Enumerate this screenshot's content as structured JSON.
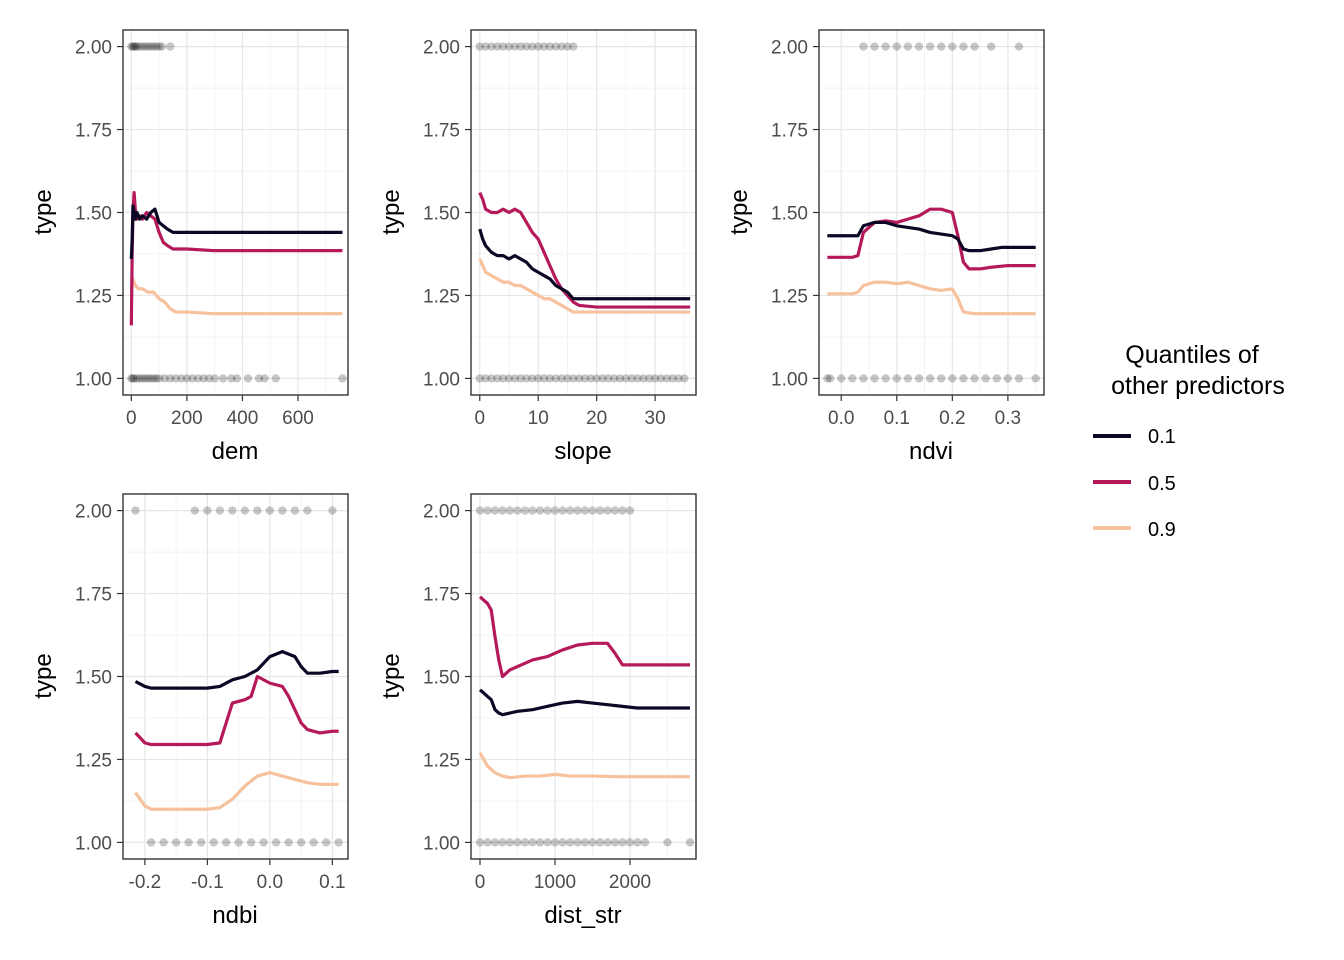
{
  "legend": {
    "title_line1": "Quantiles of",
    "title_line2": "other predictors",
    "items": [
      {
        "label": "0.1",
        "color": "#0b0724"
      },
      {
        "label": "0.5",
        "color": "#b5195a"
      },
      {
        "label": "0.9",
        "color": "#f6c19c"
      }
    ]
  },
  "chart_data": [
    {
      "type": "line",
      "xlabel": "dem",
      "ylabel": "type",
      "xlim": [
        -30,
        780
      ],
      "ylim": [
        0.95,
        2.05
      ],
      "xticks": [
        0,
        200,
        400,
        600
      ],
      "xtick_labels": [
        "0",
        "200",
        "400",
        "600"
      ],
      "yticks": [
        1.0,
        1.25,
        1.5,
        1.75,
        2.0
      ],
      "ytick_labels": [
        "1.00",
        "1.25",
        "1.50",
        "1.75",
        "2.00"
      ],
      "grid": true,
      "series": [
        {
          "name": "0.1",
          "x": [
            0,
            3,
            6,
            10,
            15,
            20,
            30,
            40,
            55,
            70,
            85,
            100,
            115,
            130,
            150,
            170,
            200,
            300,
            500,
            760
          ],
          "y": [
            1.36,
            1.42,
            1.52,
            1.5,
            1.48,
            1.5,
            1.48,
            1.49,
            1.48,
            1.5,
            1.51,
            1.47,
            1.46,
            1.45,
            1.44,
            1.44,
            1.44,
            1.44,
            1.44,
            1.44
          ]
        },
        {
          "name": "0.5",
          "x": [
            0,
            3,
            6,
            10,
            15,
            20,
            30,
            40,
            55,
            70,
            85,
            100,
            115,
            130,
            150,
            170,
            200,
            300,
            500,
            760
          ],
          "y": [
            1.16,
            1.38,
            1.5,
            1.56,
            1.5,
            1.48,
            1.49,
            1.48,
            1.5,
            1.49,
            1.48,
            1.44,
            1.41,
            1.4,
            1.39,
            1.39,
            1.39,
            1.385,
            1.385,
            1.385
          ]
        },
        {
          "name": "0.9",
          "x": [
            0,
            5,
            10,
            15,
            25,
            40,
            60,
            80,
            100,
            120,
            140,
            160,
            200,
            300,
            500,
            760
          ],
          "y": [
            1.27,
            1.3,
            1.29,
            1.28,
            1.27,
            1.27,
            1.26,
            1.26,
            1.24,
            1.23,
            1.21,
            1.2,
            1.2,
            1.195,
            1.195,
            1.195
          ]
        }
      ],
      "rug": {
        "y2": [
          0,
          5,
          10,
          15,
          20,
          30,
          40,
          50,
          60,
          70,
          80,
          90,
          100,
          110,
          140
        ],
        "y1": [
          0,
          5,
          10,
          20,
          30,
          40,
          50,
          60,
          70,
          80,
          90,
          100,
          120,
          140,
          160,
          180,
          200,
          220,
          240,
          260,
          280,
          300,
          330,
          360,
          380,
          420,
          460,
          480,
          520,
          760
        ]
      }
    },
    {
      "type": "line",
      "xlabel": "slope",
      "ylabel": "type",
      "xlim": [
        -1.5,
        37
      ],
      "ylim": [
        0.95,
        2.05
      ],
      "xticks": [
        0,
        10,
        20,
        30
      ],
      "xtick_labels": [
        "0",
        "10",
        "20",
        "30"
      ],
      "yticks": [
        1.0,
        1.25,
        1.5,
        1.75,
        2.0
      ],
      "ytick_labels": [
        "1.00",
        "1.25",
        "1.50",
        "1.75",
        "2.00"
      ],
      "grid": true,
      "series": [
        {
          "name": "0.1",
          "x": [
            0,
            0.5,
            1,
            2,
            3,
            4,
            5,
            6,
            7,
            8,
            9,
            10,
            11,
            12,
            13,
            14,
            15,
            16,
            17,
            20,
            25,
            30,
            36
          ],
          "y": [
            1.45,
            1.42,
            1.4,
            1.38,
            1.37,
            1.37,
            1.36,
            1.37,
            1.36,
            1.35,
            1.33,
            1.32,
            1.31,
            1.3,
            1.28,
            1.27,
            1.26,
            1.24,
            1.24,
            1.24,
            1.24,
            1.24,
            1.24
          ]
        },
        {
          "name": "0.5",
          "x": [
            0,
            0.5,
            1,
            2,
            3,
            4,
            5,
            6,
            7,
            8,
            9,
            10,
            11,
            12,
            13,
            14,
            15,
            16,
            17,
            20,
            25,
            30,
            36
          ],
          "y": [
            1.56,
            1.54,
            1.51,
            1.5,
            1.5,
            1.51,
            1.5,
            1.51,
            1.5,
            1.47,
            1.44,
            1.42,
            1.38,
            1.34,
            1.3,
            1.27,
            1.25,
            1.23,
            1.22,
            1.215,
            1.215,
            1.215,
            1.215
          ]
        },
        {
          "name": "0.9",
          "x": [
            0,
            0.5,
            1,
            2,
            3,
            4,
            5,
            6,
            7,
            8,
            9,
            10,
            11,
            12,
            13,
            14,
            15,
            16,
            17,
            20,
            25,
            30,
            36
          ],
          "y": [
            1.36,
            1.34,
            1.32,
            1.31,
            1.3,
            1.29,
            1.29,
            1.28,
            1.28,
            1.27,
            1.26,
            1.25,
            1.24,
            1.24,
            1.23,
            1.22,
            1.21,
            1.2,
            1.2,
            1.2,
            1.2,
            1.2,
            1.2
          ]
        }
      ],
      "rug": {
        "y2": [
          0,
          1,
          2,
          3,
          4,
          5,
          6,
          7,
          8,
          9,
          10,
          11,
          12,
          13,
          14,
          15,
          16
        ],
        "y1": [
          0,
          1,
          2,
          3,
          4,
          5,
          6,
          7,
          8,
          9,
          10,
          11,
          12,
          13,
          14,
          15,
          16,
          17,
          18,
          19,
          20,
          21,
          22,
          23,
          24,
          25,
          26,
          27,
          28,
          29,
          30,
          31,
          32,
          33,
          34,
          35
        ]
      }
    },
    {
      "type": "line",
      "xlabel": "ndvi",
      "ylabel": "type",
      "xlim": [
        -0.04,
        0.365
      ],
      "ylim": [
        0.95,
        2.05
      ],
      "xticks": [
        0.0,
        0.1,
        0.2,
        0.3
      ],
      "xtick_labels": [
        "0.0",
        "0.1",
        "0.2",
        "0.3"
      ],
      "yticks": [
        1.0,
        1.25,
        1.5,
        1.75,
        2.0
      ],
      "ytick_labels": [
        "1.00",
        "1.25",
        "1.50",
        "1.75",
        "2.00"
      ],
      "grid": true,
      "series": [
        {
          "name": "0.1",
          "x": [
            -0.025,
            0.0,
            0.02,
            0.03,
            0.04,
            0.06,
            0.08,
            0.1,
            0.12,
            0.14,
            0.16,
            0.18,
            0.2,
            0.21,
            0.22,
            0.23,
            0.25,
            0.27,
            0.29,
            0.31,
            0.35
          ],
          "y": [
            1.43,
            1.43,
            1.43,
            1.43,
            1.46,
            1.47,
            1.47,
            1.46,
            1.455,
            1.45,
            1.44,
            1.435,
            1.43,
            1.42,
            1.39,
            1.385,
            1.385,
            1.39,
            1.395,
            1.395,
            1.395
          ]
        },
        {
          "name": "0.5",
          "x": [
            -0.025,
            0.0,
            0.02,
            0.03,
            0.04,
            0.06,
            0.08,
            0.1,
            0.12,
            0.14,
            0.15,
            0.16,
            0.18,
            0.2,
            0.21,
            0.22,
            0.23,
            0.25,
            0.27,
            0.3,
            0.35
          ],
          "y": [
            1.365,
            1.365,
            1.365,
            1.37,
            1.44,
            1.47,
            1.475,
            1.47,
            1.48,
            1.49,
            1.5,
            1.51,
            1.51,
            1.5,
            1.43,
            1.35,
            1.33,
            1.33,
            1.335,
            1.34,
            1.34
          ]
        },
        {
          "name": "0.9",
          "x": [
            -0.025,
            0.0,
            0.02,
            0.03,
            0.04,
            0.06,
            0.08,
            0.1,
            0.12,
            0.14,
            0.16,
            0.18,
            0.2,
            0.21,
            0.22,
            0.24,
            0.26,
            0.3,
            0.35
          ],
          "y": [
            1.255,
            1.255,
            1.255,
            1.26,
            1.28,
            1.29,
            1.29,
            1.285,
            1.29,
            1.28,
            1.27,
            1.265,
            1.27,
            1.24,
            1.2,
            1.195,
            1.195,
            1.195,
            1.195
          ]
        }
      ],
      "rug": {
        "y2": [
          0.04,
          0.06,
          0.08,
          0.1,
          0.12,
          0.14,
          0.16,
          0.18,
          0.2,
          0.22,
          0.24,
          0.27,
          0.32
        ],
        "y1": [
          -0.025,
          -0.02,
          0.0,
          0.02,
          0.04,
          0.06,
          0.08,
          0.1,
          0.12,
          0.14,
          0.16,
          0.18,
          0.2,
          0.22,
          0.24,
          0.26,
          0.28,
          0.3,
          0.32,
          0.35
        ]
      }
    },
    {
      "type": "line",
      "xlabel": "ndbi",
      "ylabel": "type",
      "xlim": [
        -0.235,
        0.125
      ],
      "ylim": [
        0.95,
        2.05
      ],
      "xticks": [
        -0.2,
        -0.1,
        0.0,
        0.1
      ],
      "xtick_labels": [
        "-0.2",
        "-0.1",
        "0.0",
        "0.1"
      ],
      "yticks": [
        1.0,
        1.25,
        1.5,
        1.75,
        2.0
      ],
      "ytick_labels": [
        "1.00",
        "1.25",
        "1.50",
        "1.75",
        "2.00"
      ],
      "grid": true,
      "series": [
        {
          "name": "0.1",
          "x": [
            -0.215,
            -0.2,
            -0.19,
            -0.17,
            -0.15,
            -0.12,
            -0.1,
            -0.08,
            -0.06,
            -0.04,
            -0.02,
            0.0,
            0.02,
            0.04,
            0.05,
            0.06,
            0.08,
            0.1,
            0.11
          ],
          "y": [
            1.485,
            1.47,
            1.465,
            1.465,
            1.465,
            1.465,
            1.465,
            1.47,
            1.49,
            1.5,
            1.52,
            1.56,
            1.575,
            1.56,
            1.53,
            1.51,
            1.51,
            1.515,
            1.515
          ]
        },
        {
          "name": "0.5",
          "x": [
            -0.215,
            -0.2,
            -0.19,
            -0.17,
            -0.15,
            -0.12,
            -0.1,
            -0.08,
            -0.07,
            -0.06,
            -0.04,
            -0.03,
            -0.02,
            0.0,
            0.02,
            0.03,
            0.04,
            0.05,
            0.06,
            0.08,
            0.1,
            0.11
          ],
          "y": [
            1.33,
            1.3,
            1.295,
            1.295,
            1.295,
            1.295,
            1.295,
            1.3,
            1.36,
            1.42,
            1.43,
            1.44,
            1.5,
            1.48,
            1.47,
            1.44,
            1.4,
            1.36,
            1.34,
            1.33,
            1.335,
            1.335
          ]
        },
        {
          "name": "0.9",
          "x": [
            -0.215,
            -0.2,
            -0.19,
            -0.17,
            -0.15,
            -0.12,
            -0.1,
            -0.08,
            -0.06,
            -0.04,
            -0.02,
            0.0,
            0.02,
            0.04,
            0.06,
            0.08,
            0.1,
            0.11
          ],
          "y": [
            1.15,
            1.11,
            1.1,
            1.1,
            1.1,
            1.1,
            1.1,
            1.105,
            1.13,
            1.17,
            1.2,
            1.21,
            1.2,
            1.19,
            1.18,
            1.175,
            1.175,
            1.175
          ]
        }
      ],
      "rug": {
        "y2": [
          -0.215,
          -0.12,
          -0.1,
          -0.08,
          -0.06,
          -0.04,
          -0.02,
          0.0,
          0.02,
          0.04,
          0.06,
          0.1
        ],
        "y1": [
          -0.19,
          -0.17,
          -0.15,
          -0.13,
          -0.11,
          -0.09,
          -0.07,
          -0.05,
          -0.03,
          -0.01,
          0.01,
          0.03,
          0.05,
          0.07,
          0.09,
          0.11
        ]
      }
    },
    {
      "type": "line",
      "xlabel": "dist_str",
      "ylabel": "type",
      "xlim": [
        -120,
        2880
      ],
      "ylim": [
        0.95,
        2.05
      ],
      "xticks": [
        0,
        1000,
        2000
      ],
      "xtick_labels": [
        "0",
        "1000",
        "2000"
      ],
      "yticks": [
        1.0,
        1.25,
        1.5,
        1.75,
        2.0
      ],
      "ytick_labels": [
        "1.00",
        "1.25",
        "1.50",
        "1.75",
        "2.00"
      ],
      "grid": true,
      "series": [
        {
          "name": "0.1",
          "x": [
            0,
            50,
            100,
            150,
            200,
            250,
            300,
            400,
            500,
            700,
            900,
            1100,
            1300,
            1500,
            1700,
            1900,
            2100,
            2400,
            2800
          ],
          "y": [
            1.46,
            1.45,
            1.44,
            1.43,
            1.4,
            1.39,
            1.385,
            1.39,
            1.395,
            1.4,
            1.41,
            1.42,
            1.425,
            1.42,
            1.415,
            1.41,
            1.405,
            1.405,
            1.405
          ]
        },
        {
          "name": "0.5",
          "x": [
            0,
            50,
            100,
            150,
            200,
            250,
            300,
            400,
            500,
            700,
            900,
            1100,
            1300,
            1500,
            1700,
            1800,
            1900,
            2100,
            2400,
            2800
          ],
          "y": [
            1.74,
            1.73,
            1.72,
            1.7,
            1.62,
            1.55,
            1.5,
            1.52,
            1.53,
            1.55,
            1.56,
            1.58,
            1.595,
            1.6,
            1.6,
            1.57,
            1.535,
            1.535,
            1.535,
            1.535
          ]
        },
        {
          "name": "0.9",
          "x": [
            0,
            50,
            100,
            150,
            200,
            300,
            400,
            600,
            800,
            1000,
            1200,
            1500,
            1800,
            2100,
            2400,
            2800
          ],
          "y": [
            1.27,
            1.25,
            1.23,
            1.22,
            1.21,
            1.2,
            1.195,
            1.2,
            1.2,
            1.205,
            1.2,
            1.2,
            1.198,
            1.198,
            1.198,
            1.198
          ]
        }
      ],
      "rug": {
        "y2": [
          0,
          100,
          200,
          300,
          400,
          500,
          600,
          700,
          800,
          900,
          1000,
          1100,
          1200,
          1300,
          1400,
          1500,
          1600,
          1700,
          1800,
          1900,
          2000
        ],
        "y1": [
          0,
          100,
          200,
          300,
          400,
          500,
          600,
          700,
          800,
          900,
          1000,
          1100,
          1200,
          1300,
          1400,
          1500,
          1600,
          1700,
          1800,
          1900,
          2000,
          2100,
          2200,
          2500,
          2800
        ]
      }
    }
  ]
}
